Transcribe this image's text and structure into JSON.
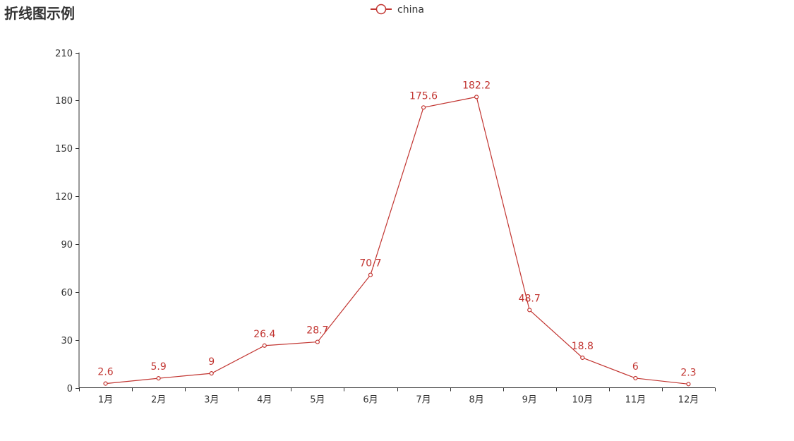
{
  "chart_data": {
    "type": "line",
    "title": "折线图示例",
    "categories": [
      "1月",
      "2月",
      "3月",
      "4月",
      "5月",
      "6月",
      "7月",
      "8月",
      "9月",
      "10月",
      "11月",
      "12月"
    ],
    "series": [
      {
        "name": "china",
        "values": [
          2.6,
          5.9,
          9,
          26.4,
          28.7,
          70.7,
          175.6,
          182.2,
          48.7,
          18.8,
          6,
          2.3
        ],
        "color": "#c23531"
      }
    ],
    "ylim": [
      0,
      210
    ],
    "yticks": [
      0,
      30,
      60,
      90,
      120,
      150,
      180,
      210
    ],
    "xlabel": "",
    "ylabel": "",
    "grid": false,
    "legend": "top-center",
    "data_labels": true
  }
}
